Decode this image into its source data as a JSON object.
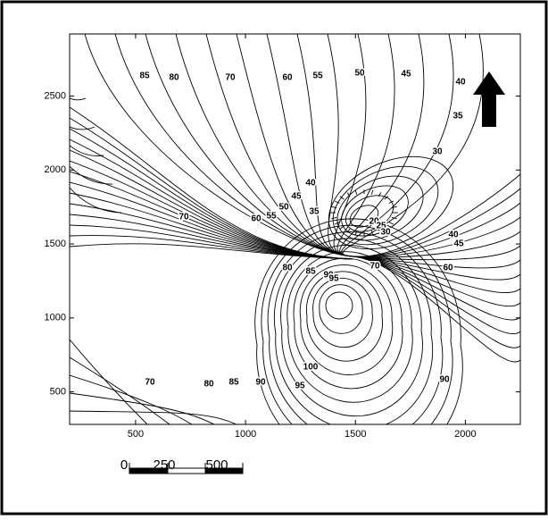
{
  "map": {
    "xlim": [
      200,
      2250
    ],
    "ylim": [
      280,
      2920
    ],
    "xticks": [
      500,
      1000,
      1500,
      2000
    ],
    "yticks": [
      500,
      1000,
      1500,
      2000,
      2500
    ],
    "contour_labels": [
      85,
      80,
      70,
      60,
      55,
      50,
      45,
      40,
      35,
      30,
      40,
      45,
      35,
      50,
      55,
      60,
      70,
      20,
      25,
      30,
      40,
      45,
      70,
      60,
      80,
      85,
      90,
      95,
      100,
      95,
      90,
      85,
      80,
      70,
      90
    ],
    "scale_bar": {
      "labels": [
        "0",
        "250",
        "500"
      ]
    }
  }
}
